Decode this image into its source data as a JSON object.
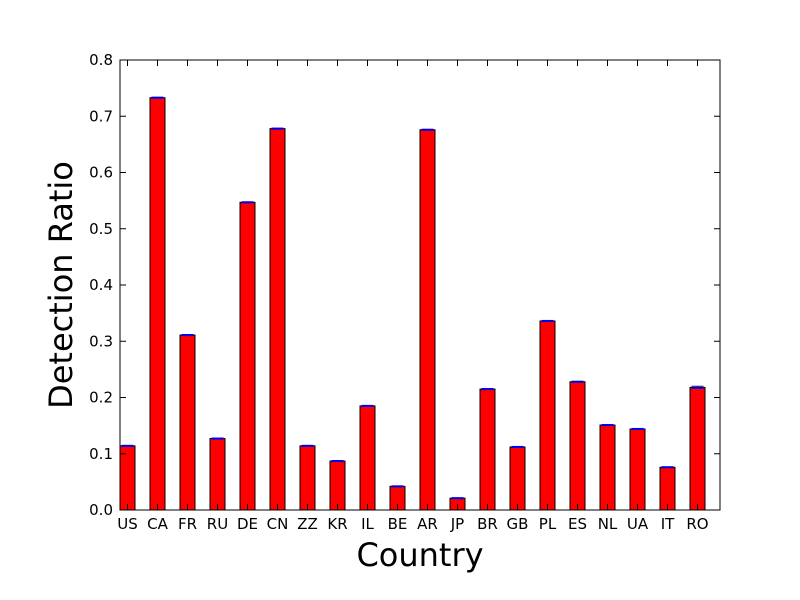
{
  "chart_data": {
    "type": "bar",
    "title": "",
    "xlabel": "Country",
    "ylabel": "Detection Ratio",
    "ylim": [
      0,
      0.8
    ],
    "yticks": [
      "0.0",
      "0.1",
      "0.2",
      "0.3",
      "0.4",
      "0.5",
      "0.6",
      "0.7",
      "0.8"
    ],
    "categories": [
      "US",
      "CA",
      "FR",
      "RU",
      "DE",
      "CN",
      "ZZ",
      "KR",
      "IL",
      "BE",
      "AR",
      "JP",
      "BR",
      "GB",
      "PL",
      "ES",
      "NL",
      "UA",
      "IT",
      "RO"
    ],
    "values": [
      0.114,
      0.733,
      0.311,
      0.127,
      0.547,
      0.678,
      0.114,
      0.087,
      0.185,
      0.042,
      0.676,
      0.021,
      0.215,
      0.112,
      0.336,
      0.228,
      0.151,
      0.144,
      0.076,
      0.218
    ],
    "errors": [
      0.001,
      0.001,
      0.001,
      0.001,
      0.001,
      0.001,
      0.001,
      0.001,
      0.001,
      0.001,
      0.001,
      0.001,
      0.001,
      0.001,
      0.001,
      0.001,
      0.001,
      0.001,
      0.001,
      0.002
    ],
    "grid": false,
    "colors": {
      "bar_fill": "#ff0000",
      "bar_edge": "#000000",
      "error_bar": "#0000ff",
      "axis": "#000000"
    }
  }
}
